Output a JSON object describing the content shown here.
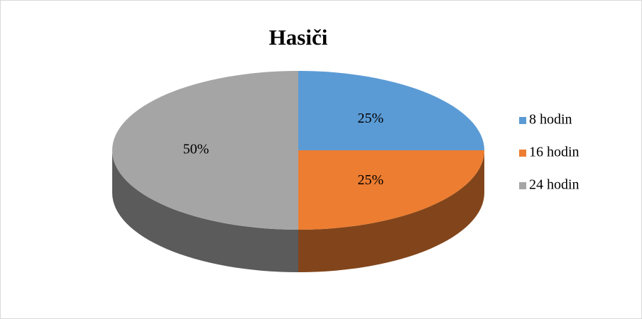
{
  "chart_data": {
    "type": "pie",
    "title": "Hasiči",
    "categories": [
      "8 hodin",
      "16 hodin",
      "24 hodin"
    ],
    "values": [
      25,
      25,
      50
    ],
    "value_labels": [
      "25%",
      "25%",
      "50%"
    ],
    "colors": [
      "#5b9bd5",
      "#ed7d31",
      "#a5a5a5"
    ],
    "legend": "right"
  }
}
